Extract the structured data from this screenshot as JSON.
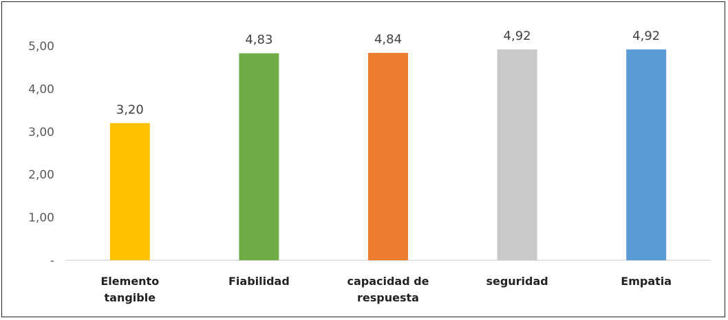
{
  "chart_data": {
    "type": "bar",
    "categories": [
      [
        "Elemento",
        "tangible"
      ],
      [
        "Fiabilidad"
      ],
      [
        "capacidad de",
        "respuesta"
      ],
      [
        "seguridad"
      ],
      [
        "Empatia"
      ]
    ],
    "values": [
      3.2,
      4.83,
      4.84,
      4.92,
      4.92
    ],
    "data_labels": [
      "3,20",
      "4,83",
      "4,84",
      "4,92",
      "4,92"
    ],
    "bar_colors": [
      "#FFC000",
      "#70AD47",
      "#ED7D31",
      "#C9C9C9",
      "#5B9BD5"
    ],
    "ylim": [
      0,
      5
    ],
    "yticks": [
      {
        "value": 0,
        "label": "-"
      },
      {
        "value": 1,
        "label": "1,00"
      },
      {
        "value": 2,
        "label": "2,00"
      },
      {
        "value": 3,
        "label": "3,00"
      },
      {
        "value": 4,
        "label": "4,00"
      },
      {
        "value": 5,
        "label": "5,00"
      }
    ],
    "grid": false,
    "legend": "none",
    "title": "",
    "xlabel": "",
    "ylabel": ""
  }
}
